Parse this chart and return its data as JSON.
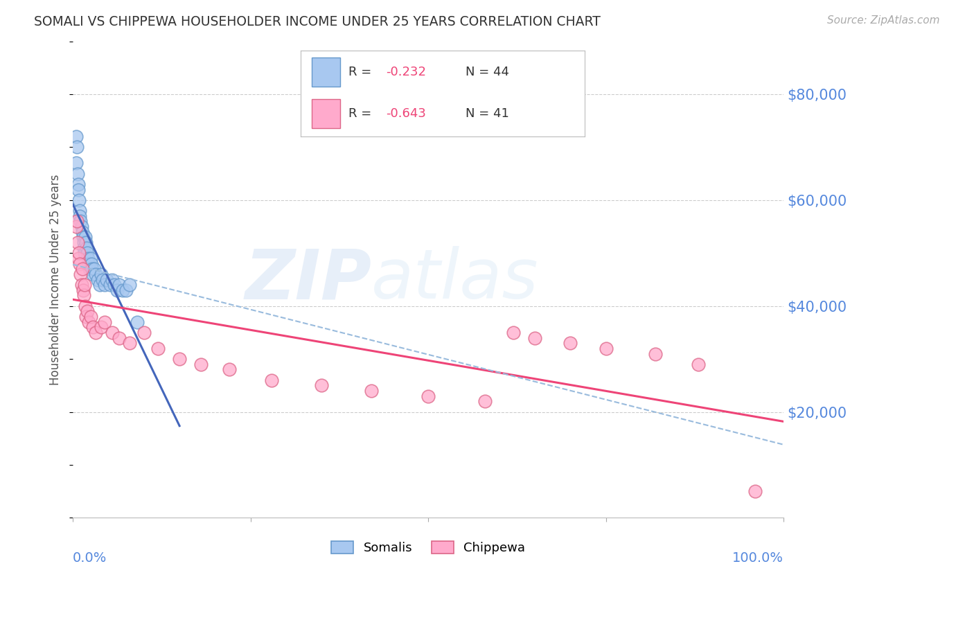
{
  "title": "SOMALI VS CHIPPEWA HOUSEHOLDER INCOME UNDER 25 YEARS CORRELATION CHART",
  "source": "Source: ZipAtlas.com",
  "ylabel": "Householder Income Under 25 years",
  "watermark_zip": "ZIP",
  "watermark_atlas": "atlas",
  "ylim": [
    0,
    90000
  ],
  "xlim": [
    0,
    1.0
  ],
  "yticks": [
    0,
    20000,
    40000,
    60000,
    80000
  ],
  "ytick_labels": [
    "",
    "$20,000",
    "$40,000",
    "$60,000",
    "$80,000"
  ],
  "somali_x": [
    0.005,
    0.005,
    0.006,
    0.007,
    0.008,
    0.008,
    0.009,
    0.01,
    0.01,
    0.011,
    0.012,
    0.013,
    0.014,
    0.015,
    0.015,
    0.016,
    0.017,
    0.018,
    0.019,
    0.02,
    0.021,
    0.022,
    0.023,
    0.025,
    0.026,
    0.027,
    0.028,
    0.03,
    0.032,
    0.035,
    0.038,
    0.04,
    0.042,
    0.045,
    0.048,
    0.052,
    0.055,
    0.058,
    0.062,
    0.065,
    0.07,
    0.075,
    0.08,
    0.09
  ],
  "somali_y": [
    72000,
    67000,
    70000,
    65000,
    63000,
    62000,
    60000,
    58000,
    57000,
    56000,
    55000,
    54000,
    53000,
    52000,
    51000,
    50000,
    53000,
    52000,
    51000,
    50000,
    49000,
    48000,
    47000,
    49000,
    48000,
    47000,
    46000,
    47000,
    46000,
    45000,
    44000,
    46000,
    45000,
    44000,
    45000,
    44000,
    45000,
    44000,
    43000,
    44000,
    43000,
    43000,
    44000,
    37000
  ],
  "chippewa_x": [
    0.005,
    0.006,
    0.007,
    0.008,
    0.009,
    0.01,
    0.011,
    0.012,
    0.013,
    0.014,
    0.015,
    0.016,
    0.017,
    0.018,
    0.02,
    0.022,
    0.025,
    0.028,
    0.032,
    0.04,
    0.045,
    0.055,
    0.065,
    0.08,
    0.1,
    0.12,
    0.15,
    0.18,
    0.22,
    0.28,
    0.35,
    0.42,
    0.5,
    0.58,
    0.62,
    0.65,
    0.7,
    0.75,
    0.82,
    0.88,
    0.96
  ],
  "chippewa_y": [
    55000,
    56000,
    52000,
    49000,
    50000,
    48000,
    46000,
    44000,
    47000,
    43000,
    42000,
    44000,
    40000,
    38000,
    39000,
    37000,
    38000,
    36000,
    35000,
    36000,
    37000,
    35000,
    34000,
    33000,
    35000,
    32000,
    30000,
    29000,
    28000,
    26000,
    25000,
    24000,
    23000,
    22000,
    35000,
    34000,
    33000,
    32000,
    31000,
    29000,
    5000
  ],
  "somali_color": "#a8c8f0",
  "somali_edge": "#6699cc",
  "chippewa_color": "#ffaacc",
  "chippewa_edge": "#dd6688",
  "somali_line_color": "#4466bb",
  "chippewa_line_color": "#ee4477",
  "dashed_line_color": "#99bbdd",
  "grid_color": "#cccccc",
  "title_color": "#333333",
  "source_color": "#aaaaaa",
  "ytick_color": "#5588dd",
  "background_color": "#ffffff",
  "legend_r1": "R = -0.232",
  "legend_n1": "N = 44",
  "legend_r2": "R = -0.643",
  "legend_n2": "N = 41",
  "bottom_label1": "Somalis",
  "bottom_label2": "Chippewa"
}
